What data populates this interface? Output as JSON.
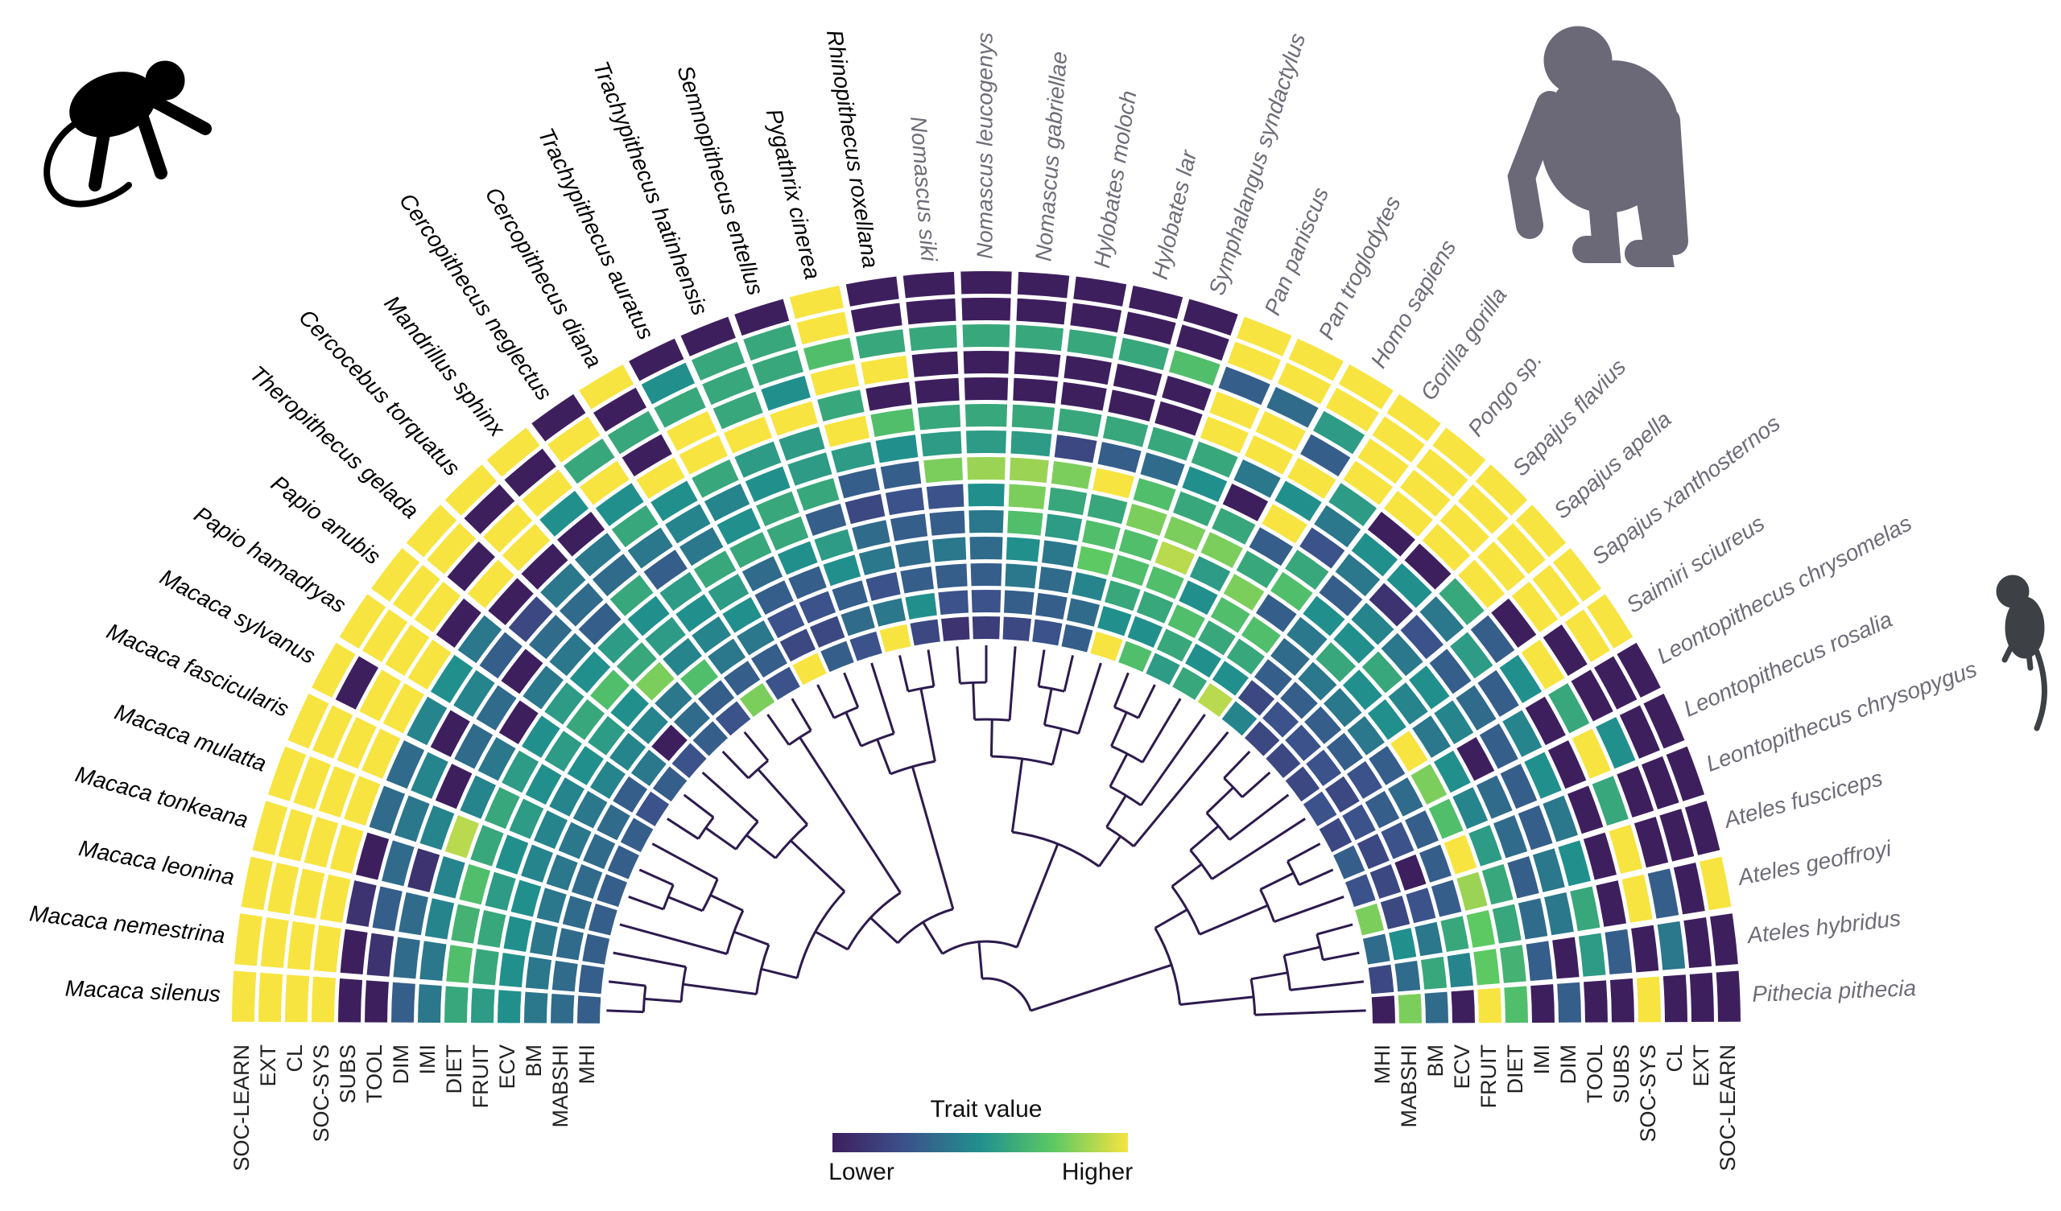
{
  "chart_data": {
    "type": "radial-heatmap",
    "categories": [
      "Macaca silenus",
      "Macaca nemestrina",
      "Macaca leonina",
      "Macaca tonkeana",
      "Macaca mulatta",
      "Macaca fascicularis",
      "Macaca sylvanus",
      "Papio hamadryas",
      "Papio anubis",
      "Theropithecus gelada",
      "Cercocebus torquatus",
      "Mandrillus sphinx",
      "Cercopithecus neglectus",
      "Cercopithecus diana",
      "Trachypithecus auratus",
      "Trachypithecus hatinhensis",
      "Semnopithecus entellus",
      "Pygathrix cinerea",
      "Rhinopithecus roxellana",
      "Nomascus siki",
      "Nomascus leucogenys",
      "Nomascus gabriellae",
      "Hylobates moloch",
      "Hylobates lar",
      "Symphalangus syndactylus",
      "Pan paniscus",
      "Pan troglodytes",
      "Homo sapiens",
      "Gorilla gorilla",
      "Pongo sp.",
      "Sapajus flavius",
      "Sapajus apella",
      "Sapajus xanthosternos",
      "Saimiri sciureus",
      "Leontopithecus chrysomelas",
      "Leontopithecus rosalia",
      "Leontopithecus chrysopygus",
      "Ateles fusciceps",
      "Ateles geoffroyi",
      "Ateles hybridus",
      "Pithecia pithecia"
    ],
    "traits": [
      "SOC-LEARN",
      "EXT",
      "CL",
      "SOC-SYS",
      "SUBS",
      "TOOL",
      "DIM",
      "IMI",
      "DIET",
      "FRUIT",
      "ECV",
      "BM",
      "MABSHI",
      "MHI"
    ],
    "values": [
      [
        1,
        1,
        1,
        1,
        0,
        0,
        0.3,
        0.4,
        0.6,
        0.55,
        0.5,
        0.4,
        0.35,
        0.3
      ],
      [
        1,
        1,
        1,
        1,
        0,
        0.1,
        0.35,
        0.4,
        0.7,
        0.6,
        0.5,
        0.4,
        0.35,
        0.3
      ],
      [
        1,
        1,
        1,
        1,
        0.1,
        0.3,
        0.35,
        0.45,
        0.65,
        0.6,
        0.5,
        0.4,
        0.35,
        0.3
      ],
      [
        1,
        1,
        1,
        1,
        0,
        0.35,
        0.1,
        0.45,
        0.7,
        0.55,
        0.5,
        0.4,
        0.35,
        0.3
      ],
      [
        1,
        1,
        1,
        1,
        0.35,
        0.4,
        0.45,
        0.9,
        0.6,
        0.5,
        0.45,
        0.4,
        0.35,
        0.3
      ],
      [
        1,
        1,
        1,
        1,
        0.35,
        0.45,
        0,
        0.45,
        0.6,
        0.55,
        0.45,
        0.4,
        0.35,
        0.3
      ],
      [
        1,
        0,
        1,
        1,
        0.45,
        0,
        0.35,
        0.4,
        0.55,
        0.5,
        0.45,
        0.4,
        0.35,
        0.3
      ],
      [
        1,
        1,
        1,
        1,
        0.5,
        0.45,
        0.35,
        0,
        0.5,
        0.55,
        0.5,
        0.45,
        0.3,
        0.25
      ],
      [
        1,
        1,
        1,
        0,
        0.4,
        0.3,
        0,
        0.4,
        0.55,
        0.6,
        0.55,
        0.45,
        0.4,
        0.3
      ],
      [
        1,
        1,
        0,
        1,
        0,
        0.2,
        0.35,
        0.4,
        0.5,
        0.7,
        0.5,
        0.45,
        0,
        0.25
      ],
      [
        1,
        0,
        1,
        1,
        0,
        0.4,
        0.35,
        0.3,
        0.55,
        0.6,
        0.8,
        0.4,
        0.35,
        0.3
      ],
      [
        1,
        0,
        1,
        0.5,
        0,
        0.4,
        0.35,
        0.6,
        0.5,
        0.55,
        0.45,
        0.7,
        0.3,
        0.25
      ],
      [
        0,
        1,
        0.6,
        1,
        0.5,
        0.6,
        0.4,
        0.3,
        0.55,
        0.5,
        0.45,
        0.4,
        0.3,
        0.8
      ],
      [
        1,
        0,
        0.6,
        0,
        1,
        0.5,
        0.45,
        0.4,
        0.6,
        0.55,
        0.5,
        0.4,
        0.3,
        0.25
      ],
      [
        0,
        0.5,
        0.6,
        1,
        1,
        0.6,
        0.45,
        0.5,
        0.6,
        0.35,
        0.3,
        0.25,
        0.2,
        1
      ],
      [
        0,
        0.6,
        0.6,
        0.6,
        1,
        0.55,
        0.5,
        0.6,
        0.6,
        0.5,
        0.3,
        0.25,
        0.2,
        0.3
      ],
      [
        0,
        0.6,
        0.6,
        0.5,
        1,
        0.55,
        0.55,
        0.6,
        0.3,
        0.55,
        0.5,
        0.3,
        0.35,
        0.25
      ],
      [
        1,
        1,
        0.7,
        1,
        0.6,
        1,
        0.55,
        0.3,
        0.2,
        0.35,
        0.4,
        0.25,
        0.4,
        1
      ],
      [
        0,
        0,
        0.6,
        1,
        0,
        0.7,
        0.5,
        0.3,
        0.25,
        0.3,
        0.35,
        0.3,
        0.5,
        0.2
      ],
      [
        0,
        0,
        0.6,
        0,
        0,
        0.6,
        0.55,
        0.8,
        0.25,
        0.3,
        0.4,
        0.3,
        0.25,
        0.1
      ],
      [
        0,
        0,
        0.6,
        0,
        0,
        0.6,
        0.55,
        0.85,
        0.5,
        0.4,
        0.35,
        0.3,
        0.25,
        0.15
      ],
      [
        0,
        0,
        0.6,
        0,
        0,
        0.6,
        0.55,
        0.85,
        0.8,
        0.7,
        0.5,
        0.4,
        0.3,
        0.2
      ],
      [
        0,
        0,
        0.6,
        0,
        0,
        0.6,
        0.2,
        0.8,
        0.6,
        0.55,
        0.4,
        0.35,
        0.3,
        0.25
      ],
      [
        0,
        0,
        0.6,
        0,
        0,
        0.6,
        0.3,
        1,
        0.6,
        0.7,
        0.75,
        0.45,
        0.35,
        0.3
      ],
      [
        0,
        0,
        0.7,
        0,
        0,
        0.6,
        0.35,
        0.7,
        0.8,
        0.7,
        0.7,
        0.6,
        0.5,
        1
      ],
      [
        1,
        1,
        0.3,
        1,
        1,
        0.6,
        0.5,
        0.6,
        0.8,
        0.9,
        0.7,
        0.6,
        0.5,
        0.7
      ],
      [
        1,
        1,
        0.35,
        1,
        1,
        0.4,
        0,
        0.6,
        0.8,
        0.55,
        0.5,
        0.7,
        0.6,
        0.55
      ],
      [
        1,
        1,
        0.55,
        0.3,
        1,
        0.5,
        1,
        0.3,
        0.6,
        0.8,
        0.7,
        0.6,
        0.5,
        0.6
      ],
      [
        1,
        1,
        1,
        1,
        0.55,
        0.4,
        0.25,
        0.6,
        0.7,
        0.3,
        0.7,
        0.6,
        0.5,
        0.9
      ],
      [
        1,
        1,
        1,
        1,
        0,
        0.5,
        0.4,
        0.3,
        0.5,
        0.4,
        0.35,
        0.3,
        0.2,
        0.45
      ],
      [
        1,
        1,
        1,
        1,
        0,
        0.5,
        0.1,
        0.45,
        0.5,
        0.6,
        0.4,
        0.3,
        0.25,
        0.2
      ],
      [
        1,
        1,
        1,
        1,
        0.6,
        0.4,
        0.25,
        0.4,
        0.6,
        0.5,
        0.4,
        0.3,
        0.25,
        0.2
      ],
      [
        1,
        1,
        1,
        0,
        0.3,
        0.55,
        0.3,
        0.5,
        0.45,
        0.5,
        0.4,
        0.3,
        0.25,
        0.2
      ],
      [
        1,
        1,
        0,
        1,
        0.5,
        0.3,
        0.35,
        0.45,
        0.4,
        1,
        0.3,
        0.25,
        0.2,
        0.25
      ],
      [
        0,
        0,
        0,
        0.6,
        0,
        0.45,
        0.3,
        0,
        0.5,
        0.8,
        0.35,
        0.3,
        0.25,
        0.2
      ],
      [
        0,
        0,
        0.5,
        1,
        0,
        0.5,
        0.3,
        0.35,
        0.45,
        0.7,
        0.3,
        0.25,
        0.2,
        0.3
      ],
      [
        0,
        0,
        0,
        0.6,
        0,
        0.4,
        0.3,
        0.35,
        0.55,
        1,
        0.3,
        0,
        0.2,
        0.25
      ],
      [
        0,
        0,
        0,
        1,
        0,
        0.5,
        0.4,
        0.3,
        0.6,
        0.85,
        0.3,
        0.25,
        0.2,
        0.8
      ],
      [
        1,
        0,
        0.3,
        1,
        0,
        0.6,
        0.4,
        0.35,
        0.6,
        0.75,
        0.6,
        0.4,
        0.5,
        0.35
      ],
      [
        0,
        0,
        0.4,
        0,
        0.3,
        0.55,
        0,
        0.3,
        0.65,
        0.75,
        0.45,
        0.6,
        0.35,
        0.2
      ],
      [
        0,
        0,
        0,
        1,
        0,
        0,
        0.3,
        0,
        0.7,
        1,
        0,
        0.35,
        0.8,
        0
      ]
    ],
    "vlim": [
      0,
      1
    ],
    "colormap": [
      "#3e1f5e",
      "#3b528b",
      "#21908d",
      "#5dc963",
      "#f7e440"
    ],
    "legend": {
      "title": "Trait value",
      "low": "Lower",
      "high": "Higher"
    }
  }
}
